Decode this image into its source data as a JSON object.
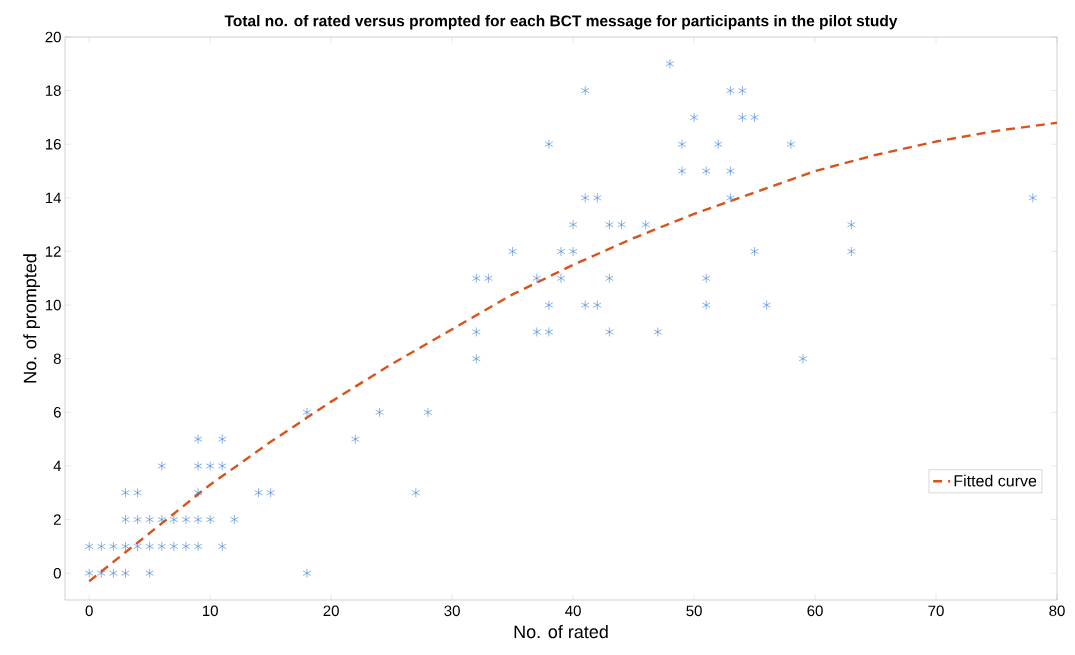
{
  "chart_data": {
    "type": "scatter",
    "title": "Total no. of rated versus prompted for each BCT message for participants in the pilot study",
    "xlabel": "No. of rated",
    "ylabel": "No. of prompted",
    "xlim": [
      -2,
      80
    ],
    "ylim": [
      -1,
      20
    ],
    "xticks": [
      0,
      10,
      20,
      30,
      40,
      50,
      60,
      70,
      80
    ],
    "yticks": [
      0,
      2,
      4,
      6,
      8,
      10,
      12,
      14,
      16,
      18,
      20
    ],
    "grid": false,
    "legend": "bottom right",
    "series": [
      {
        "color": "#3c7fd6",
        "marker": "cross",
        "x": [
          0,
          1,
          2,
          3,
          5,
          18,
          0,
          1,
          2,
          3,
          4,
          5,
          6,
          7,
          8,
          9,
          11,
          3,
          4,
          5,
          6,
          7,
          8,
          9,
          10,
          12,
          3,
          4,
          9,
          14,
          15,
          27,
          6,
          9,
          10,
          11,
          9,
          11,
          22,
          18,
          24,
          28,
          32,
          59,
          32,
          37,
          38,
          43,
          47,
          38,
          41,
          42,
          51,
          56,
          32,
          33,
          37,
          39,
          43,
          51,
          35,
          39,
          40,
          55,
          63,
          40,
          43,
          44,
          46,
          63,
          41,
          42,
          53,
          78,
          49,
          51,
          53,
          38,
          49,
          52,
          58,
          50,
          54,
          55,
          41,
          53,
          54,
          48
        ],
        "values": [
          0,
          0,
          0,
          0,
          0,
          0,
          1,
          1,
          1,
          1,
          1,
          1,
          1,
          1,
          1,
          1,
          1,
          2,
          2,
          2,
          2,
          2,
          2,
          2,
          2,
          2,
          3,
          3,
          3,
          3,
          3,
          3,
          4,
          4,
          4,
          4,
          5,
          5,
          5,
          6,
          6,
          6,
          8,
          8,
          9,
          9,
          9,
          9,
          9,
          10,
          10,
          10,
          10,
          10,
          11,
          11,
          11,
          11,
          11,
          11,
          12,
          12,
          12,
          12,
          12,
          13,
          13,
          13,
          13,
          13,
          14,
          14,
          14,
          14,
          15,
          15,
          15,
          16,
          16,
          16,
          16,
          17,
          17,
          17,
          18,
          18,
          18,
          19
        ]
      },
      {
        "type": "line",
        "name": "Fitted curve",
        "color": "#d95319",
        "line_style": "dashed",
        "marker": "none",
        "x": [
          0,
          5,
          10,
          15,
          20,
          25,
          30,
          35,
          40,
          45,
          50,
          55,
          60,
          65,
          70,
          75,
          80
        ],
        "values": [
          -0.3,
          1.5,
          3.3,
          4.9,
          6.4,
          7.8,
          9.1,
          10.4,
          11.5,
          12.5,
          13.4,
          14.2,
          15.0,
          15.6,
          16.1,
          16.5,
          16.8
        ]
      }
    ]
  }
}
